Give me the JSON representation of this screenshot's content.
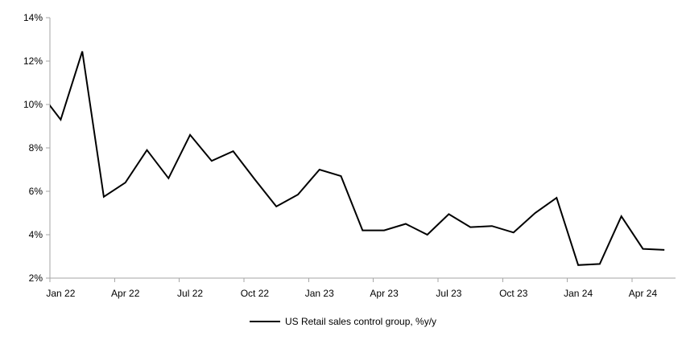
{
  "chart_data": {
    "type": "line",
    "title": "",
    "xlabel": "",
    "ylabel": "",
    "legend": "US Retail sales control group, %y/y",
    "legend_position": "bottom-center",
    "grid": false,
    "ylim": [
      2,
      14
    ],
    "y_tick_step": 2,
    "y_tick_labels": [
      "2%",
      "4%",
      "6%",
      "8%",
      "10%",
      "12%",
      "14%"
    ],
    "x_tick_labels": [
      {
        "label": "Jan 22",
        "month_index": 0
      },
      {
        "label": "Apr 22",
        "month_index": 3
      },
      {
        "label": "Jul 22",
        "month_index": 6
      },
      {
        "label": "Oct 22",
        "month_index": 9
      },
      {
        "label": "Jan 23",
        "month_index": 12
      },
      {
        "label": "Apr 23",
        "month_index": 15
      },
      {
        "label": "Jul 23",
        "month_index": 18
      },
      {
        "label": "Oct 23",
        "month_index": 21
      },
      {
        "label": "Jan 24",
        "month_index": 24
      },
      {
        "label": "Apr 24",
        "month_index": 27
      }
    ],
    "x_axis_categories_visible": 29,
    "line_color": "#000000",
    "axis_color": "#a6a6a6",
    "text_color": "#000000",
    "series": [
      {
        "name": "US Retail sales control group, %y/y",
        "first_point_category_index": -1,
        "clip_note": "Dec 21 point lies left of the plot edge; its segment is clipped at the y-axis",
        "x": [
          "Dec 21",
          "Jan 22",
          "Feb 22",
          "Mar 22",
          "Apr 22",
          "May 22",
          "Jun 22",
          "Jul 22",
          "Aug 22",
          "Sep 22",
          "Oct 22",
          "Nov 22",
          "Dec 22",
          "Jan 23",
          "Feb 23",
          "Mar 23",
          "Apr 23",
          "May 23",
          "Jun 23",
          "Jul 23",
          "Aug 23",
          "Sep 23",
          "Oct 23",
          "Nov 23",
          "Dec 23",
          "Jan 24",
          "Feb 24",
          "Mar 24",
          "Apr 24",
          "May 24"
        ],
        "values": [
          10.6,
          9.3,
          12.45,
          5.75,
          6.4,
          7.9,
          6.6,
          8.6,
          7.4,
          7.85,
          6.55,
          5.3,
          5.85,
          7.0,
          6.7,
          4.2,
          4.2,
          4.5,
          4.0,
          4.95,
          4.35,
          4.4,
          4.1,
          5.0,
          5.7,
          2.6,
          2.65,
          4.85,
          3.35,
          3.3
        ]
      }
    ]
  }
}
